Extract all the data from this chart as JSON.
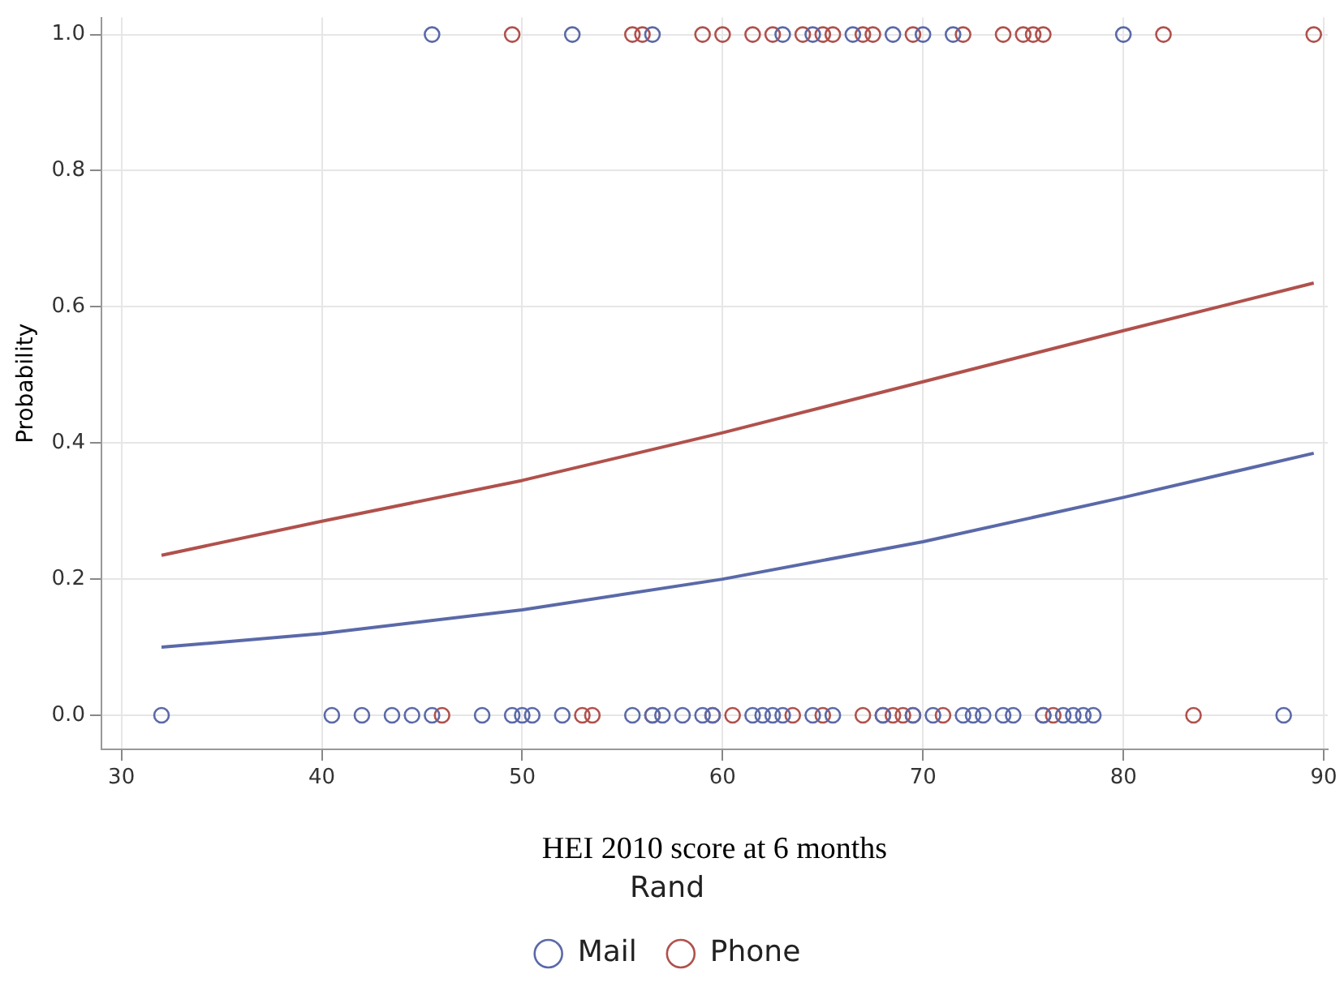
{
  "chart_data": {
    "type": "scatter",
    "xlabel": "HEI 2010 score at 6 months",
    "ylabel": "Probability",
    "legend_title": "Rand",
    "legend": "bottom",
    "grid": true,
    "marker": "circle",
    "xlim": [
      29,
      90.2
    ],
    "xticks": [
      30,
      40,
      50,
      60,
      70,
      80,
      90
    ],
    "ylim": [
      -0.05,
      1.025
    ],
    "yticks": [
      {
        "value": 0,
        "label": "0.0"
      },
      {
        "value": 0.2,
        "label": "0.2"
      },
      {
        "value": 0.4,
        "label": "0.4"
      },
      {
        "value": 0.6,
        "label": "0.6"
      },
      {
        "value": 0.8,
        "label": "0.8"
      },
      {
        "value": 1,
        "label": "1.0"
      }
    ],
    "series": [
      {
        "name": "Mail",
        "color": "#5a69a8",
        "x": [
          45.5,
          52.5,
          56.5,
          63,
          64.5,
          66.5,
          68.5,
          70,
          71.5,
          80,
          32,
          40.5,
          42,
          43.5,
          44.5,
          45.5,
          48,
          49.5,
          50,
          50.5,
          52,
          55.5,
          56.5,
          57,
          58,
          59,
          59.5,
          61.5,
          62,
          62.5,
          63,
          64.5,
          65.5,
          68,
          69.5,
          70.5,
          72,
          72.5,
          73,
          74,
          74.5,
          76,
          77,
          77.5,
          78,
          78.5,
          88
        ],
        "values": [
          1,
          1,
          1,
          1,
          1,
          1,
          1,
          1,
          1,
          1,
          0,
          0,
          0,
          0,
          0,
          0,
          0,
          0,
          0,
          0,
          0,
          0,
          0,
          0,
          0,
          0,
          0,
          0,
          0,
          0,
          0,
          0,
          0,
          0,
          0,
          0,
          0,
          0,
          0,
          0,
          0,
          0,
          0,
          0,
          0,
          0,
          0
        ]
      },
      {
        "name": "Phone",
        "color": "#b0514c",
        "x": [
          49.5,
          55.5,
          56,
          59,
          60,
          61.5,
          62.5,
          64,
          65,
          65.5,
          67,
          67.5,
          69.5,
          72,
          74,
          75,
          75.5,
          76,
          82,
          89.5,
          46,
          53,
          53.5,
          56.5,
          59.5,
          60.5,
          63.5,
          65,
          67,
          68,
          68.5,
          69,
          69.5,
          71,
          76,
          76.5,
          83.5
        ],
        "values": [
          1,
          1,
          1,
          1,
          1,
          1,
          1,
          1,
          1,
          1,
          1,
          1,
          1,
          1,
          1,
          1,
          1,
          1,
          1,
          1,
          0,
          0,
          0,
          0,
          0,
          0,
          0,
          0,
          0,
          0,
          0,
          0,
          0,
          0,
          0,
          0,
          0
        ]
      },
      {
        "type": "line",
        "marker": "none",
        "color": "#5a69a8",
        "x": [
          32,
          40,
          50,
          60,
          70,
          80,
          89.5
        ],
        "values": [
          0.1,
          0.12,
          0.155,
          0.2,
          0.255,
          0.32,
          0.385
        ]
      },
      {
        "type": "line",
        "marker": "none",
        "color": "#b0514c",
        "x": [
          32,
          40,
          50,
          60,
          70,
          80,
          89.5
        ],
        "values": [
          0.235,
          0.285,
          0.345,
          0.415,
          0.49,
          0.565,
          0.635
        ]
      }
    ]
  }
}
